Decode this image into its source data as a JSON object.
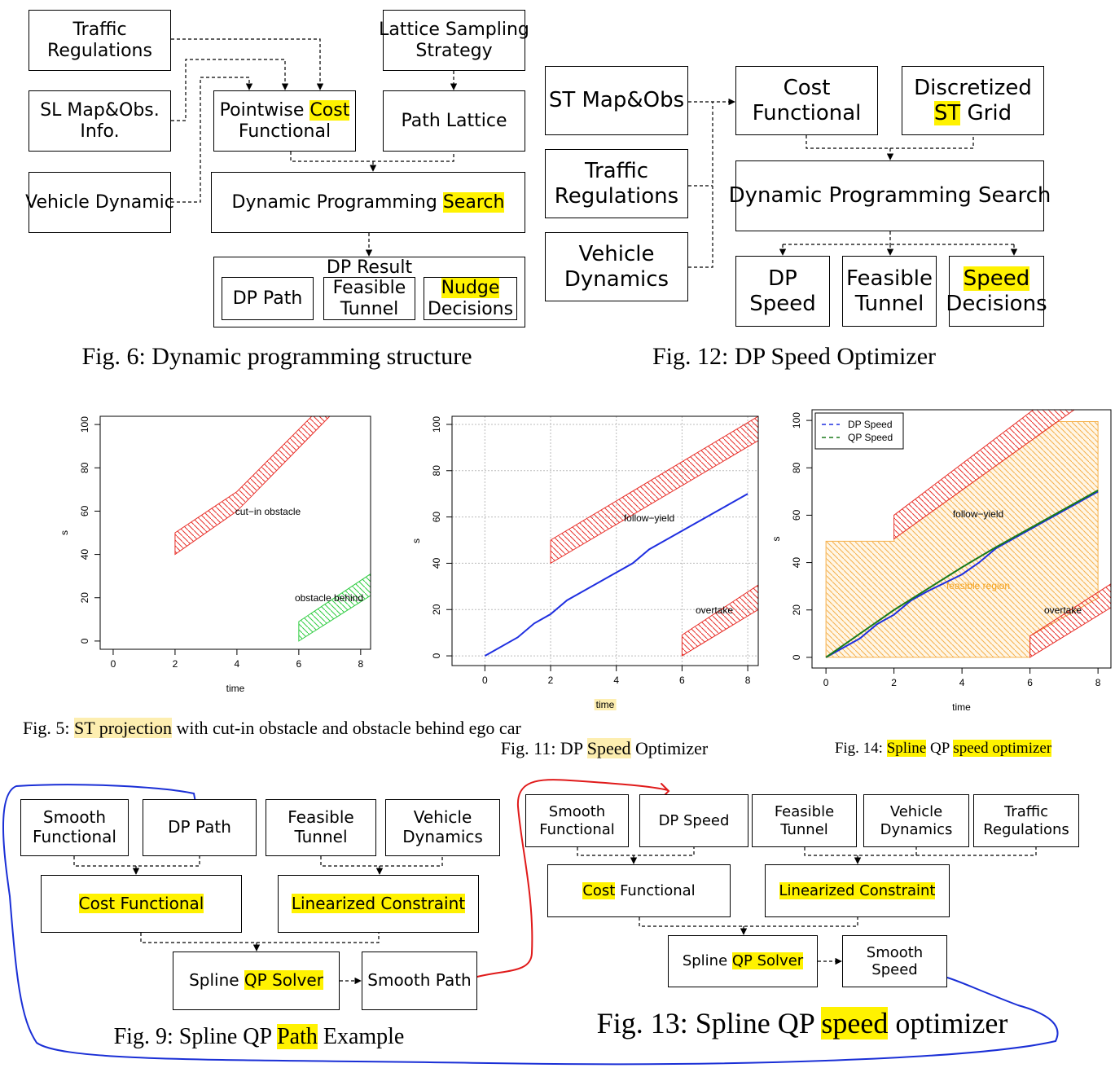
{
  "diagrams": [
    {
      "boxes": [
        {
          "lines": [
            [
              "Traffic"
            ],
            [
              "Regulations"
            ]
          ]
        },
        {
          "lines": [
            [
              "SL Map&Obs."
            ],
            [
              "Info."
            ]
          ]
        },
        {
          "lines": [
            [
              "Vehicle Dynamic"
            ]
          ]
        },
        {
          "lines": [
            [
              "Lattice Sampling"
            ],
            [
              "Strategy"
            ]
          ]
        },
        {
          "lines": [
            [
              "Pointwise ",
              {
                "text": "Cost",
                "highlight": "#fff200"
              }
            ],
            [
              "Functional"
            ]
          ]
        },
        {
          "lines": [
            [
              "Path Lattice"
            ]
          ]
        },
        {
          "lines": [
            [
              "Dynamic Programming ",
              {
                "text": "Search",
                "highlight": "#fff200"
              }
            ]
          ]
        },
        {
          "lines": [
            [
              "DP Result"
            ]
          ]
        },
        {
          "lines": [
            [
              "DP Path"
            ]
          ]
        },
        {
          "lines": [
            [
              "Feasible"
            ],
            [
              "Tunnel"
            ]
          ]
        },
        {
          "lines": [
            [
              {
                "text": "Nudge",
                "highlight": "#fff200"
              }
            ],
            [
              "Decisions"
            ]
          ]
        }
      ],
      "caption": [
        "Fig. 6: Dynamic programming structure"
      ]
    },
    {
      "boxes": [
        {
          "lines": [
            [
              "ST Map&Obs"
            ]
          ]
        },
        {
          "lines": [
            [
              "Traffic"
            ],
            [
              "Regulations"
            ]
          ]
        },
        {
          "lines": [
            [
              "Vehicle"
            ],
            [
              "Dynamics"
            ]
          ]
        },
        {
          "lines": [
            [
              "Cost"
            ],
            [
              "Functional"
            ]
          ]
        },
        {
          "lines": [
            [
              "Discretized"
            ],
            [
              {
                "text": "ST",
                "highlight": "#fff200"
              },
              " Grid"
            ]
          ]
        },
        {
          "lines": [
            [
              "Dynamic Programming Search"
            ]
          ]
        },
        {
          "lines": [
            [
              "DP"
            ],
            [
              "Speed"
            ]
          ]
        },
        {
          "lines": [
            [
              "Feasible"
            ],
            [
              "Tunnel"
            ]
          ]
        },
        {
          "lines": [
            [
              {
                "text": "Speed",
                "highlight": "#fff200"
              }
            ],
            [
              "Decisions"
            ]
          ]
        }
      ],
      "caption": [
        "Fig. 12: DP Speed Optimizer"
      ]
    },
    {
      "boxes": [
        {
          "lines": [
            [
              "Smooth"
            ],
            [
              "Functional"
            ]
          ]
        },
        {
          "lines": [
            [
              "DP Path"
            ]
          ]
        },
        {
          "lines": [
            [
              "Feasible"
            ],
            [
              "Tunnel"
            ]
          ]
        },
        {
          "lines": [
            [
              "Vehicle"
            ],
            [
              "Dynamics"
            ]
          ]
        },
        {
          "lines": [
            [
              {
                "text": "Cost Functional",
                "highlight": "#fff200"
              }
            ]
          ]
        },
        {
          "lines": [
            [
              {
                "text": "Linearized Constraint",
                "highlight": "#fff200"
              }
            ]
          ]
        },
        {
          "lines": [
            [
              "Spline ",
              {
                "text": "QP Solver",
                "highlight": "#fff200"
              }
            ]
          ]
        },
        {
          "lines": [
            [
              "Smooth Path"
            ]
          ]
        }
      ],
      "caption": [
        "Fig. 9: Spline QP ",
        {
          "text": "Path",
          "highlight": "#fff200"
        },
        " Example"
      ]
    },
    {
      "boxes": [
        {
          "lines": [
            [
              "Smooth"
            ],
            [
              "Functional"
            ]
          ]
        },
        {
          "lines": [
            [
              "DP Speed"
            ]
          ]
        },
        {
          "lines": [
            [
              "Feasible"
            ],
            [
              "Tunnel"
            ]
          ]
        },
        {
          "lines": [
            [
              "Vehicle"
            ],
            [
              "Dynamics"
            ]
          ]
        },
        {
          "lines": [
            [
              "Traffic"
            ],
            [
              "Regulations"
            ]
          ]
        },
        {
          "lines": [
            [
              {
                "text": "Cost",
                "highlight": "#fff200"
              },
              " Functional"
            ]
          ]
        },
        {
          "lines": [
            [
              {
                "text": "Linearized Constraint",
                "highlight": "#fff200"
              }
            ]
          ]
        },
        {
          "lines": [
            [
              "Spline ",
              {
                "text": "QP Solver",
                "highlight": "#fff200"
              }
            ]
          ]
        },
        {
          "lines": [
            [
              "Smooth"
            ],
            [
              "Speed"
            ]
          ]
        }
      ],
      "caption": [
        "Fig. 13: Spline QP ",
        {
          "text": "speed",
          "highlight": "#fff200"
        },
        " optimizer"
      ]
    }
  ],
  "chart_data": [
    {
      "type": "area",
      "caption": [
        "Fig. 5: ",
        {
          "text": "ST projection",
          "highlight": "#fdeeb0"
        },
        " with cut-in obstacle and obstacle behind ego car"
      ],
      "xlabel": "time",
      "ylabel": "s",
      "xlim": [
        -0.42,
        8.32
      ],
      "ylim": [
        -3.8,
        103.8
      ],
      "xticks": [
        0,
        2,
        4,
        6,
        8
      ],
      "yticks": [
        0,
        20,
        40,
        60,
        80,
        100
      ],
      "grid": false,
      "regions": [
        {
          "color": "#e8302a",
          "x": [
            2,
            2,
            4,
            6.42,
            7.0,
            4
          ],
          "y": [
            40,
            50,
            69,
            103.8,
            103.8,
            60
          ]
        },
        {
          "color": "#2ecc40",
          "x": [
            6,
            6,
            8.32,
            8.32
          ],
          "y": [
            0,
            9,
            31,
            21
          ]
        }
      ],
      "annotations": [
        {
          "text": "cut−in obstacle"
        },
        {
          "text": "obstacle behind"
        }
      ]
    },
    {
      "type": "line",
      "caption": [
        "Fig. 11: DP ",
        {
          "text": "Speed",
          "highlight": "#fdeeb0"
        },
        " Optimizer"
      ],
      "xlabel": {
        "text": "time",
        "highlight": "#fdeeb0"
      },
      "ylabel": "s",
      "xlim": [
        -1.0,
        8.32
      ],
      "ylim": [
        -4.2,
        103.5
      ],
      "xticks": [
        0,
        2,
        4,
        6,
        8
      ],
      "yticks": [
        0,
        20,
        40,
        60,
        80,
        100
      ],
      "grid": true,
      "regions": [
        {
          "color": "#e8302a",
          "x": [
            2,
            2,
            8.32,
            8.32
          ],
          "y": [
            40,
            50,
            103.5,
            93
          ]
        },
        {
          "color": "#e8302a",
          "x": [
            6,
            6,
            8.32,
            8.32
          ],
          "y": [
            0,
            9,
            30.6,
            20
          ]
        }
      ],
      "series": [
        {
          "color": "#1f2fe0",
          "x": [
            0,
            1,
            1.5,
            2,
            2.5,
            3,
            3.5,
            4,
            4.5,
            5,
            5.5,
            6,
            6.5,
            7,
            7.5,
            8
          ],
          "values": [
            0,
            8,
            14,
            18,
            24,
            28,
            32,
            36,
            40,
            46,
            50,
            54,
            58,
            62,
            66,
            70
          ]
        }
      ],
      "annotations": [
        {
          "text": "follow−yield"
        },
        {
          "text": "overtake"
        }
      ]
    },
    {
      "type": "line",
      "caption": [
        "Fig. 14: ",
        {
          "text": "Spline",
          "highlight": "#fff200"
        },
        " QP ",
        {
          "text": "speed optimizer",
          "highlight": "#fff200"
        }
      ],
      "xlabel": "time",
      "ylabel": "s",
      "xlim": [
        -0.41,
        8.38
      ],
      "ylim": [
        -4.5,
        104.5
      ],
      "xticks": [
        0,
        2,
        4,
        6,
        8
      ],
      "yticks": [
        0,
        20,
        40,
        60,
        80,
        100
      ],
      "grid": false,
      "legend": "top-left",
      "regions": [
        {
          "color": "#f5b04a",
          "fill": "#fff6e6",
          "x": [
            0,
            0,
            2,
            2,
            6.8,
            8,
            8,
            6,
            6
          ],
          "y": [
            0,
            49,
            49,
            50,
            99.5,
            99.5,
            25,
            9,
            0
          ]
        },
        {
          "color": "#e8302a",
          "x": [
            2,
            2,
            6.1,
            7.3
          ],
          "y": [
            50,
            60,
            104.5,
            104.5
          ]
        },
        {
          "color": "#e8302a",
          "x": [
            6,
            6,
            8.38,
            8.38
          ],
          "y": [
            0,
            9,
            31,
            21
          ]
        }
      ],
      "series": [
        {
          "name": "DP Speed",
          "color": "#1f2fe0",
          "x": [
            0,
            1,
            1.5,
            2,
            2.5,
            3,
            4,
            4.5,
            5,
            6,
            7,
            8
          ],
          "values": [
            0,
            8,
            14,
            18,
            24,
            28,
            35,
            40,
            46,
            54,
            62,
            70
          ]
        },
        {
          "name": "QP Speed",
          "color": "#1a7a1a",
          "x": [
            0,
            1,
            2,
            3,
            4,
            5,
            6,
            7,
            8
          ],
          "values": [
            0,
            10,
            20,
            29,
            38,
            46.5,
            54.5,
            62.5,
            70.5
          ]
        }
      ],
      "annotations": [
        {
          "text": "follow−yield"
        },
        {
          "text": "feasible region",
          "color": "#f5a21b"
        },
        {
          "text": "overtake"
        }
      ]
    }
  ]
}
